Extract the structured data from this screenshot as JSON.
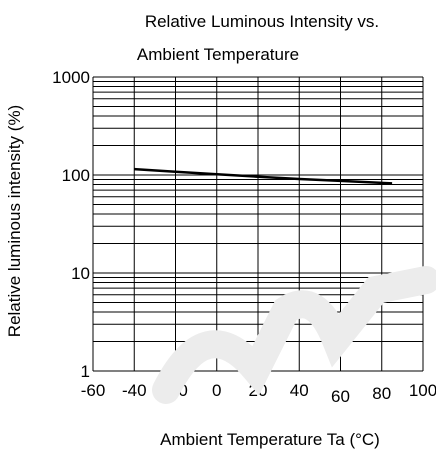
{
  "chart_data": {
    "type": "line",
    "title_lines": [
      "Relative Luminous Intensity vs.",
      "Ambient Temperature"
    ],
    "xlabel": "Ambient Temperature Ta (°C)",
    "ylabel": "Relative luminous intensity  (%)",
    "xlim": [
      -60,
      100
    ],
    "ylim": [
      1,
      1000
    ],
    "y_scale": "log",
    "grid": true,
    "x_ticks": [
      {
        "value": -60,
        "label": "-60"
      },
      {
        "value": -40,
        "label": "-40"
      },
      {
        "value": -20,
        "label": "-20"
      },
      {
        "value": 0,
        "label": "0"
      },
      {
        "value": 20,
        "label": "20"
      },
      {
        "value": 40,
        "label": "40"
      },
      {
        "value": 60,
        "label": "60"
      },
      {
        "value": 80,
        "label": "80"
      },
      {
        "value": 100,
        "label": "100"
      }
    ],
    "y_ticks": [
      {
        "value": 1,
        "label": "1"
      },
      {
        "value": 10,
        "label": "10"
      },
      {
        "value": 100,
        "label": "100"
      },
      {
        "value": 1000,
        "label": "1000"
      }
    ],
    "series": [
      {
        "x": [
          -40,
          -20,
          0,
          20,
          40,
          60,
          85
        ],
        "y": [
          115,
          108,
          102,
          96,
          91,
          87,
          82
        ]
      }
    ]
  },
  "colors": {
    "grid": "#000000",
    "line": "#000000",
    "watermark": "#ececec"
  }
}
